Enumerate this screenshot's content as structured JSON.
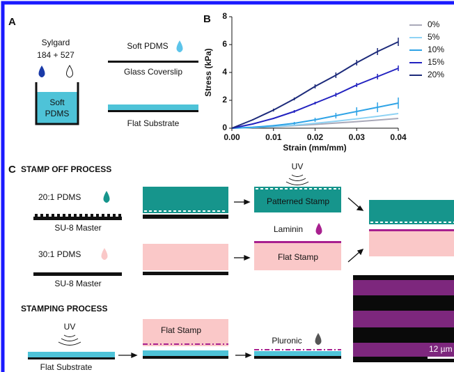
{
  "panel_a": {
    "label": "A",
    "sylgard": "Sylgard",
    "ratio": "184 + 527",
    "beaker_label": [
      "Soft",
      "PDMS"
    ],
    "soft_pdms": "Soft PDMS",
    "coverslip": "Glass Coverslip",
    "flat_substrate": "Flat Substrate"
  },
  "chart_data": {
    "type": "line",
    "panel_label": "B",
    "x_label": "Strain (mm/mm)",
    "y_label": "Stress (kPa)",
    "x": [
      0,
      0.005,
      0.01,
      0.015,
      0.02,
      0.025,
      0.03,
      0.035,
      0.04
    ],
    "series": [
      {
        "name": "0%",
        "color": "#a9a9b9",
        "values": [
          0,
          0.05,
          0.1,
          0.18,
          0.27,
          0.37,
          0.47,
          0.58,
          0.7
        ]
      },
      {
        "name": "5%",
        "color": "#8fd3f4",
        "values": [
          0,
          0.05,
          0.12,
          0.22,
          0.35,
          0.5,
          0.67,
          0.85,
          1.05
        ]
      },
      {
        "name": "10%",
        "color": "#2ea3e6",
        "values": [
          0,
          0.07,
          0.18,
          0.35,
          0.6,
          0.9,
          1.2,
          1.5,
          1.8
        ],
        "errors": [
          0,
          0.02,
          0.05,
          0.1,
          0.15,
          0.2,
          0.3,
          0.35,
          0.4
        ]
      },
      {
        "name": "15%",
        "color": "#2222c0",
        "values": [
          0,
          0.3,
          0.7,
          1.2,
          1.8,
          2.4,
          3.1,
          3.7,
          4.3
        ],
        "errors": [
          0,
          0.05,
          0.05,
          0.1,
          0.1,
          0.15,
          0.15,
          0.2,
          0.2
        ]
      },
      {
        "name": "20%",
        "color": "#1c2a7a",
        "values": [
          0,
          0.6,
          1.3,
          2.1,
          3.0,
          3.8,
          4.7,
          5.5,
          6.2
        ],
        "errors": [
          0,
          0.05,
          0.1,
          0.1,
          0.15,
          0.2,
          0.2,
          0.25,
          0.3
        ]
      }
    ],
    "xlim": [
      0,
      0.04
    ],
    "xticks": [
      {
        "value": 0,
        "label": "0.00"
      },
      0.01,
      0.02,
      0.03,
      0.04
    ],
    "ylim": [
      0,
      8
    ],
    "yticks": [
      0,
      2,
      4,
      6,
      8
    ],
    "legend": "right"
  },
  "panel_c": {
    "label": "C",
    "stamp_off_title": "STAMP OFF PROCESS",
    "pdms_20": "20:1 PDMS",
    "master_1": "SU-8 Master",
    "uv_1": "UV",
    "patterned_stamp": "Patterned Stamp",
    "laminin": "Laminin",
    "pdms_30": "30:1 PDMS",
    "master_2": "SU-8 Master",
    "flat_stamp_1": "Flat Stamp",
    "stamping_title": "STAMPING PROCESS",
    "uv_2": "UV",
    "flat_substrate": "Flat Substrate",
    "flat_stamp_2": "Flat Stamp",
    "pluronic": "Pluronic",
    "scale": "12 µm"
  }
}
